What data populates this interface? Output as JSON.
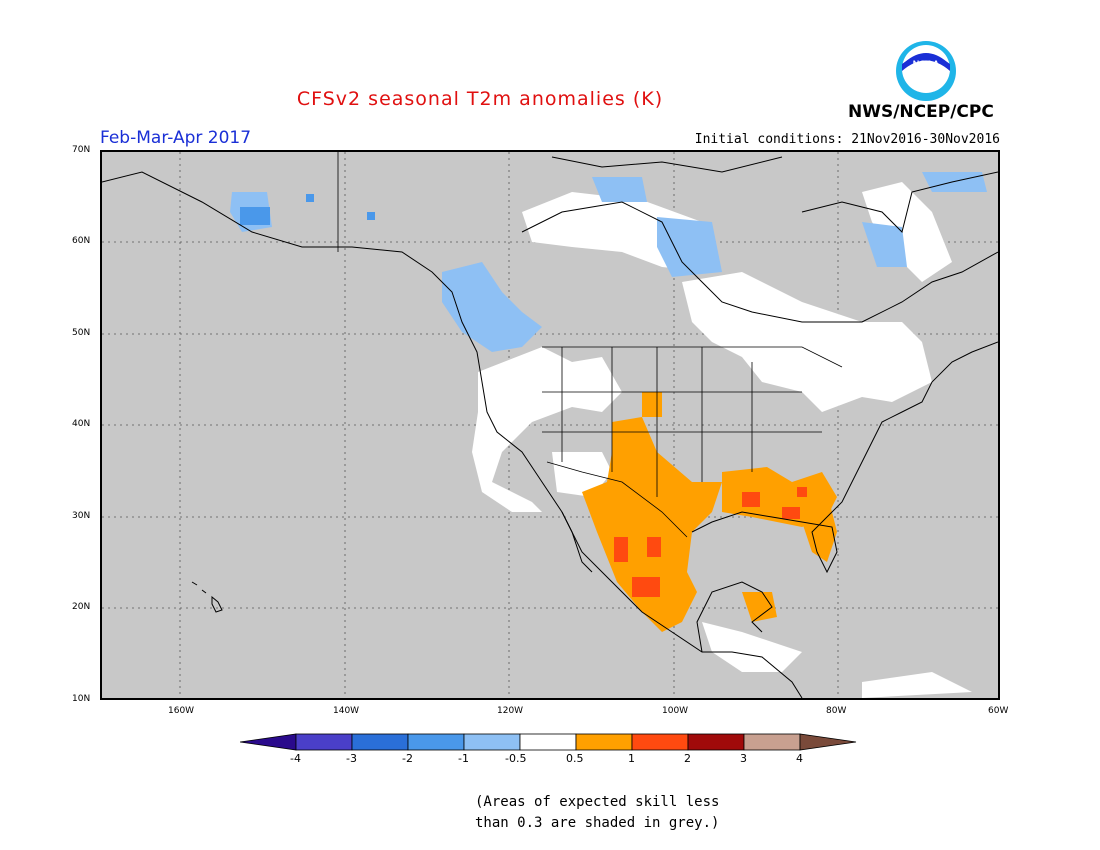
{
  "header": {
    "title": "CFSv2 seasonal T2m anomalies (K)",
    "period": "Feb-Mar-Apr 2017",
    "initial_conditions": "Initial conditions: 21Nov2016-30Nov2016",
    "agency": "NWS/NCEP/CPC",
    "logo_text": "NOAA"
  },
  "map": {
    "lat_ticks": [
      "70N",
      "60N",
      "50N",
      "40N",
      "30N",
      "20N",
      "10N"
    ],
    "lon_ticks": [
      "160W",
      "140W",
      "120W",
      "100W",
      "80W",
      "60W"
    ]
  },
  "colorbar": {
    "labels": [
      "-4",
      "-3",
      "-2",
      "-1",
      "-0.5",
      "0.5",
      "1",
      "2",
      "3",
      "4"
    ],
    "colors": [
      "#2a0a8c",
      "#4a3fc8",
      "#2a6fd8",
      "#4a98ea",
      "#8ec0f4",
      "#ffffff",
      "#ffa000",
      "#ff4a10",
      "#a00a0a",
      "#c8a090",
      "#7a4a3a"
    ]
  },
  "note": {
    "line1": "(Areas of expected skill less",
    "line2": "than 0.3 are shaded in grey.)"
  }
}
